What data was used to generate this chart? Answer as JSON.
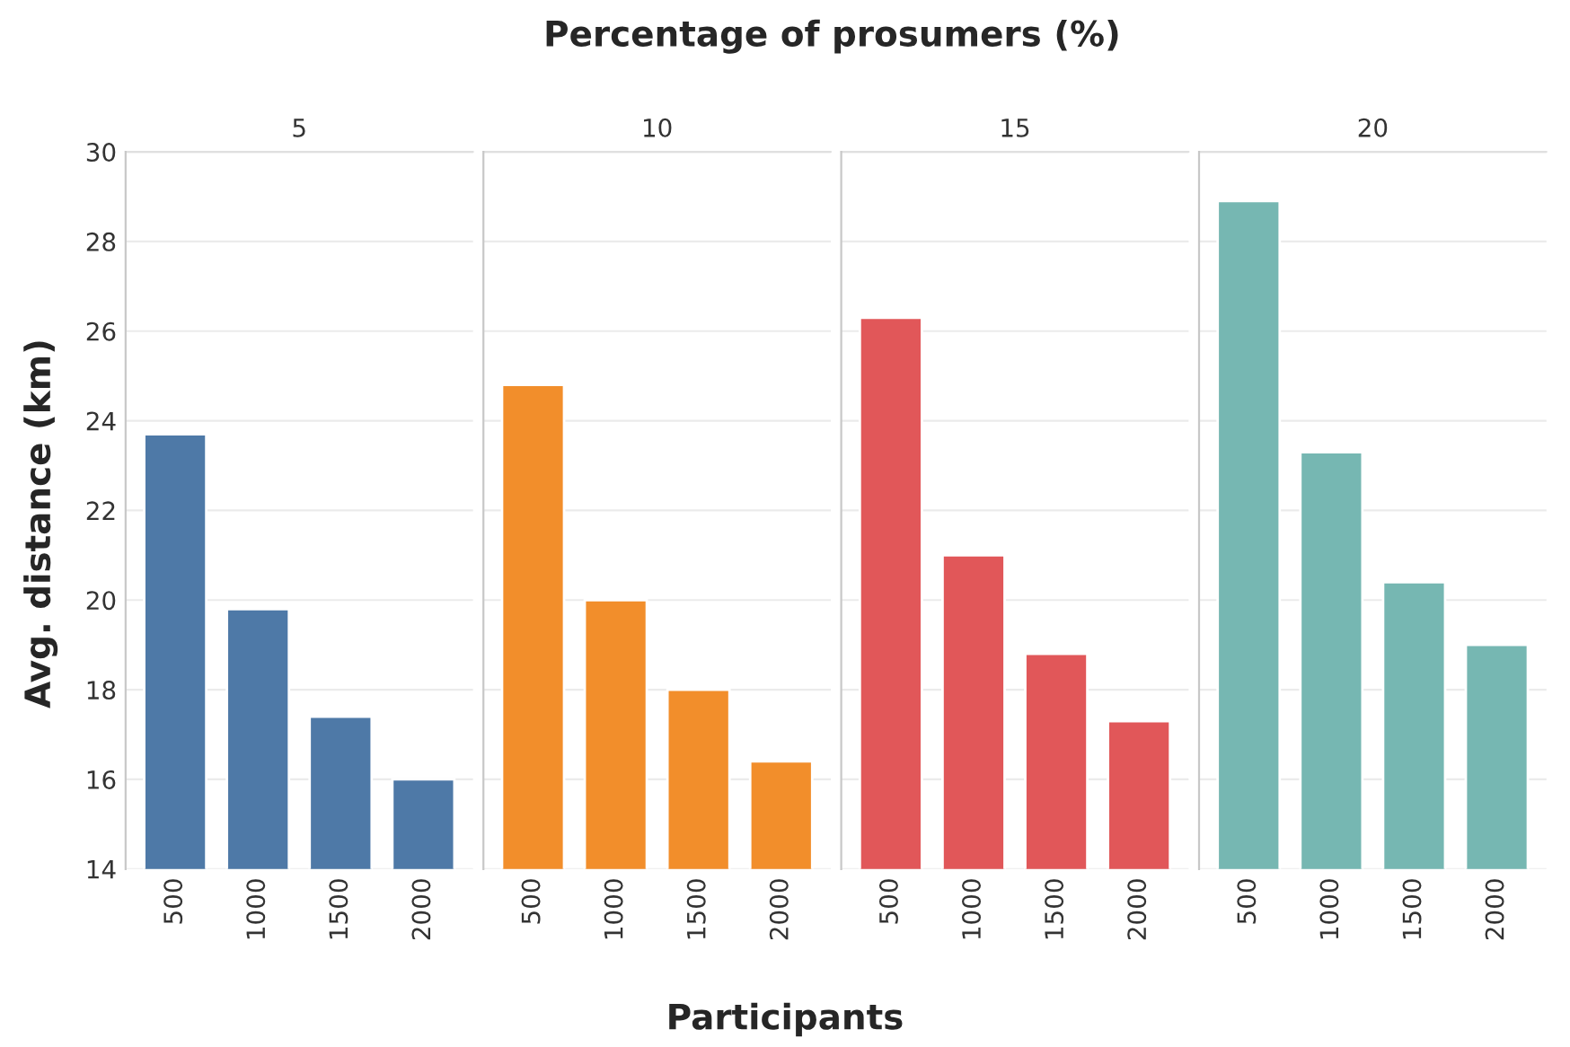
{
  "chart_data": [
    {
      "type": "bar",
      "title": "5",
      "xlabel": "Participants",
      "ylabel": "Avg. distance (km)",
      "annotations": [
        "Percentage of prosumers (%)"
      ],
      "categories": [
        "500",
        "1000",
        "1500",
        "2000"
      ],
      "values": [
        23.7,
        19.8,
        17.4,
        16.0
      ],
      "color": "#4e79a7",
      "ylim": [
        14,
        30
      ],
      "yticks": [
        14,
        16,
        18,
        20,
        22,
        24,
        26,
        28,
        30
      ],
      "grid": "y"
    },
    {
      "type": "bar",
      "title": "10",
      "categories": [
        "500",
        "1000",
        "1500",
        "2000"
      ],
      "values": [
        24.8,
        20.0,
        18.0,
        16.4
      ],
      "color": "#f28e2b",
      "ylim": [
        14,
        30
      ],
      "yticks": [
        14,
        16,
        18,
        20,
        22,
        24,
        26,
        28,
        30
      ],
      "grid": "y",
      "tick_labels": "x"
    },
    {
      "type": "bar",
      "title": "15",
      "categories": [
        "500",
        "1000",
        "1500",
        "2000"
      ],
      "values": [
        26.3,
        21.0,
        18.8,
        17.3
      ],
      "color": "#e15759",
      "ylim": [
        14,
        30
      ],
      "yticks": [
        14,
        16,
        18,
        20,
        22,
        24,
        26,
        28,
        30
      ],
      "grid": "y",
      "tick_labels": "x"
    },
    {
      "type": "bar",
      "title": "20",
      "categories": [
        "500",
        "1000",
        "1500",
        "2000"
      ],
      "values": [
        28.9,
        23.3,
        20.4,
        19.0
      ],
      "color": "#76b7b2",
      "ylim": [
        14,
        30
      ],
      "yticks": [
        14,
        16,
        18,
        20,
        22,
        24,
        26,
        28,
        30
      ],
      "grid": "y",
      "tick_labels": "x"
    }
  ]
}
